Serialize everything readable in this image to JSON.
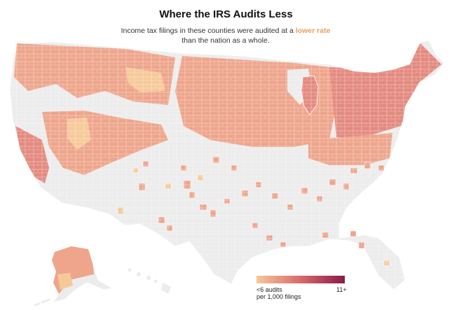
{
  "title": "Where the IRS Audits Less",
  "subtitle": {
    "before": "Income tax filings in these counties were audited at a",
    "highlight": "lower rate",
    "after": "than the nation as a whole."
  },
  "legend": {
    "low_label_line1": "<6 audits",
    "low_label_line2": "per 1,000 filings",
    "high_label": "11+",
    "color_low": "#f6c99a",
    "color_high": "#8a1a4a"
  },
  "colors": {
    "land_base": "#ececec",
    "border": "#ffffff",
    "fill_light": "#f6c99a",
    "fill_mid": "#eea58c",
    "fill_dark": "#e48a80",
    "accent": "#e8a05e"
  }
}
